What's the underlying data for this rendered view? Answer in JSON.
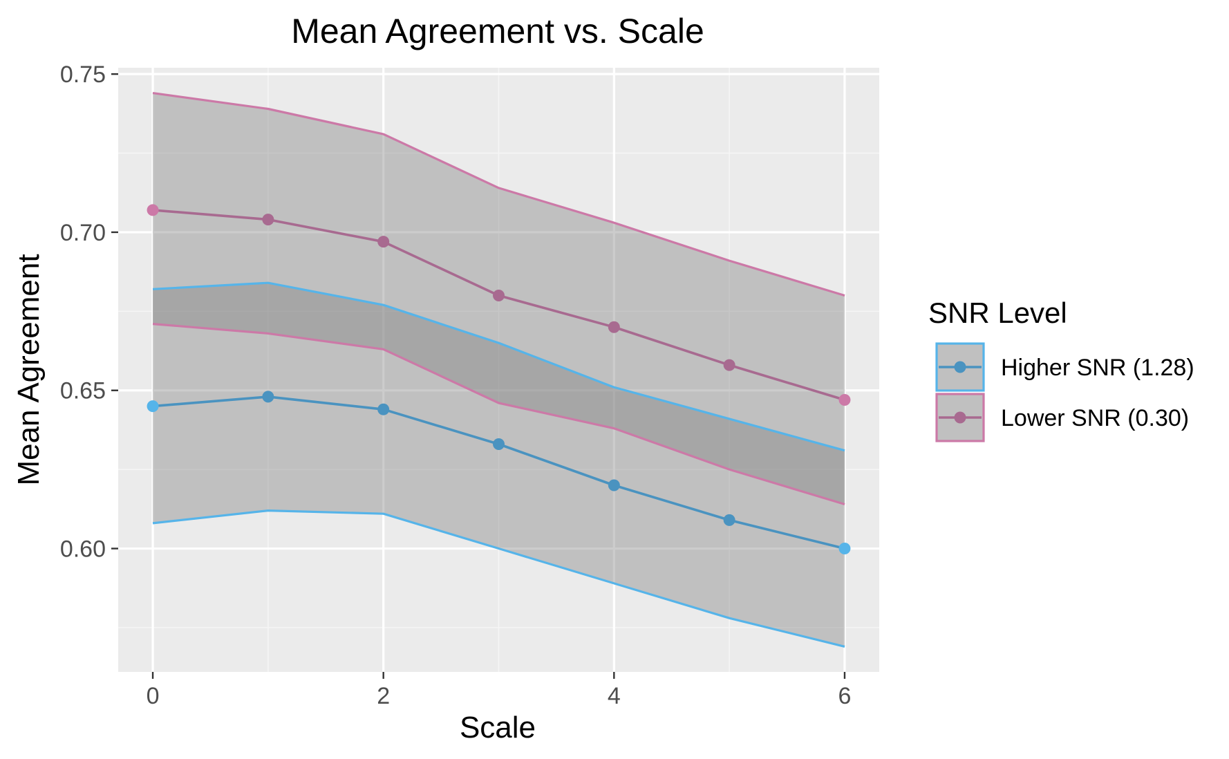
{
  "chart_data": {
    "type": "line",
    "title": "Mean Agreement vs. Scale",
    "xlabel": "Scale",
    "ylabel": "Mean Agreement",
    "xlim": [
      -0.3,
      6.3
    ],
    "ylim": [
      0.561,
      0.752
    ],
    "x_ticks": [
      0,
      2,
      4,
      6
    ],
    "x_tick_labels": [
      "0",
      "2",
      "4",
      "6"
    ],
    "y_ticks": [
      0.6,
      0.65,
      0.7,
      0.75
    ],
    "y_tick_labels": [
      "0.60",
      "0.65",
      "0.70",
      "0.75"
    ],
    "grid": true,
    "legend": {
      "title": "SNR Level",
      "placement": "right"
    },
    "x": [
      0,
      1,
      2,
      3,
      4,
      5,
      6
    ],
    "series": [
      {
        "name": "Higher SNR (1.28)",
        "line_color": "#4a93c0",
        "point_color": "#4a93c0",
        "end_point_color": "#56b4e9",
        "band_color": "#56b4e9",
        "values": [
          0.645,
          0.648,
          0.644,
          0.633,
          0.62,
          0.609,
          0.6
        ],
        "upper": [
          0.682,
          0.684,
          0.677,
          0.665,
          0.651,
          0.641,
          0.631
        ],
        "lower": [
          0.608,
          0.612,
          0.611,
          0.6,
          0.589,
          0.578,
          0.569
        ]
      },
      {
        "name": "Lower SNR (0.30)",
        "line_color": "#a86a90",
        "point_color": "#a86a90",
        "end_point_color": "#cc79a7",
        "band_color": "#cc79a7",
        "values": [
          0.707,
          0.704,
          0.697,
          0.68,
          0.67,
          0.658,
          0.647
        ],
        "upper": [
          0.744,
          0.739,
          0.731,
          0.714,
          0.703,
          0.691,
          0.68
        ],
        "lower": [
          0.671,
          0.668,
          0.663,
          0.646,
          0.638,
          0.625,
          0.614
        ]
      }
    ],
    "colors": {
      "panel_background": "#ebebeb",
      "grid_major": "#ffffff",
      "grid_minor": "#f5f5f5",
      "band_fill": "#7f7f7f",
      "axis_text": "#4d4d4d",
      "text": "#000000"
    }
  }
}
